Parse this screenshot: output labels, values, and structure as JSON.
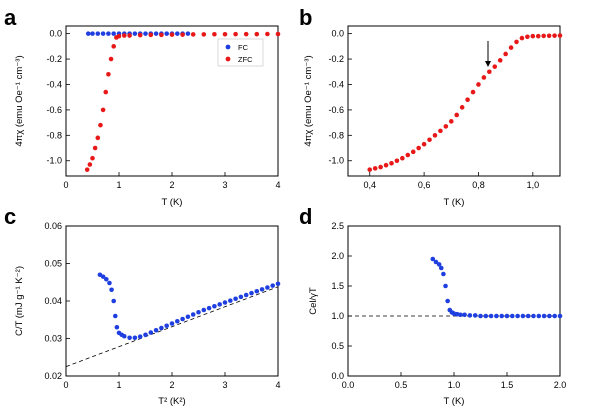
{
  "chart_data": [
    {
      "panel": "a",
      "type": "scatter",
      "xlabel": "T (K)",
      "ylabel": "4πχ (emu Oe⁻¹ cm⁻³)",
      "xlim": [
        0,
        4
      ],
      "ylim": [
        -1.12,
        0.06
      ],
      "xticks": [
        "0",
        "1",
        "2",
        "3",
        "4"
      ],
      "yticks": [
        "0.0",
        "-0.2",
        "-0.4",
        "-0.6",
        "-0.8",
        "-1.0"
      ],
      "legend_position": "top-right",
      "series": [
        {
          "name": "FC",
          "color": "#1f3fe0",
          "x": [
            0.42,
            0.5,
            0.6,
            0.7,
            0.8,
            0.9,
            1.0,
            1.1,
            1.2,
            1.3,
            1.4,
            1.5,
            1.6,
            1.7,
            1.8,
            1.9,
            2.0,
            2.1,
            2.2,
            2.3
          ],
          "y": [
            0,
            0,
            0,
            0,
            0,
            0,
            0,
            0,
            0,
            0,
            0,
            0,
            0,
            0,
            0,
            0,
            0,
            0,
            0,
            0
          ]
        },
        {
          "name": "ZFC",
          "color": "#e81818",
          "x": [
            0.4,
            0.45,
            0.5,
            0.55,
            0.6,
            0.65,
            0.7,
            0.75,
            0.8,
            0.85,
            0.9,
            0.95,
            1.0,
            1.1,
            1.2,
            1.4,
            1.6,
            1.8,
            2.0,
            2.2,
            2.4,
            2.6,
            2.8,
            3.0,
            3.2,
            3.4,
            3.6,
            3.8,
            4.0
          ],
          "y": [
            -1.07,
            -1.03,
            -0.98,
            -0.9,
            -0.82,
            -0.72,
            -0.6,
            -0.46,
            -0.32,
            -0.2,
            -0.1,
            -0.03,
            -0.02,
            -0.015,
            -0.015,
            -0.012,
            -0.01,
            -0.01,
            -0.008,
            -0.008,
            -0.006,
            -0.006,
            -0.005,
            -0.005,
            -0.004,
            -0.004,
            -0.004,
            -0.003,
            -0.003
          ]
        }
      ]
    },
    {
      "panel": "b",
      "type": "scatter",
      "xlabel": "T (K)",
      "ylabel": "4πχ (emu Oe⁻¹ cm⁻³)",
      "xlim": [
        0.32,
        1.1
      ],
      "ylim": [
        -1.12,
        0.06
      ],
      "xticks": [
        "0,4",
        "0,6",
        "0,8",
        "1,0"
      ],
      "yticks": [
        "0.0",
        "-0.2",
        "-0.4",
        "-0.6",
        "-0.8",
        "-1.0"
      ],
      "annotation": "arrow at T ≈ 0.83 K",
      "series": [
        {
          "name": "ZFC",
          "color": "#e81818",
          "x": [
            0.4,
            0.42,
            0.44,
            0.46,
            0.48,
            0.5,
            0.52,
            0.54,
            0.56,
            0.58,
            0.6,
            0.62,
            0.64,
            0.66,
            0.68,
            0.7,
            0.72,
            0.74,
            0.76,
            0.78,
            0.8,
            0.82,
            0.84,
            0.86,
            0.88,
            0.9,
            0.92,
            0.94,
            0.96,
            0.98,
            1.0,
            1.02,
            1.04,
            1.06,
            1.08,
            1.1
          ],
          "y": [
            -1.07,
            -1.06,
            -1.05,
            -1.035,
            -1.02,
            -1.0,
            -0.98,
            -0.955,
            -0.93,
            -0.9,
            -0.87,
            -0.835,
            -0.8,
            -0.765,
            -0.73,
            -0.69,
            -0.64,
            -0.58,
            -0.52,
            -0.46,
            -0.4,
            -0.345,
            -0.3,
            -0.26,
            -0.21,
            -0.16,
            -0.11,
            -0.065,
            -0.035,
            -0.025,
            -0.02,
            -0.02,
            -0.018,
            -0.017,
            -0.016,
            -0.015
          ]
        }
      ]
    },
    {
      "panel": "c",
      "type": "scatter",
      "xlabel": "T² (K²)",
      "ylabel": "C/T (mJ g⁻¹ K⁻²)",
      "xlim": [
        0,
        4
      ],
      "ylim": [
        0.02,
        0.06
      ],
      "xticks": [
        "0",
        "1",
        "2",
        "3",
        "4"
      ],
      "yticks": [
        "0.02",
        "0.03",
        "0.04",
        "0.05",
        "0.06"
      ],
      "fit_line": {
        "x": [
          0,
          4
        ],
        "y": [
          0.0225,
          0.0438
        ]
      },
      "series": [
        {
          "color": "#1f3fe0",
          "x": [
            0.64,
            0.7,
            0.76,
            0.82,
            0.86,
            0.9,
            0.93,
            0.96,
            1.0,
            1.05,
            1.1,
            1.2,
            1.3,
            1.4,
            1.5,
            1.6,
            1.7,
            1.8,
            1.9,
            2.0,
            2.1,
            2.2,
            2.3,
            2.4,
            2.5,
            2.6,
            2.7,
            2.8,
            2.9,
            3.0,
            3.1,
            3.2,
            3.3,
            3.4,
            3.5,
            3.6,
            3.7,
            3.8,
            3.9,
            4.0
          ],
          "y": [
            0.047,
            0.0465,
            0.0458,
            0.0448,
            0.043,
            0.04,
            0.036,
            0.033,
            0.0315,
            0.031,
            0.0306,
            0.0302,
            0.0302,
            0.0305,
            0.031,
            0.0316,
            0.0322,
            0.0328,
            0.0334,
            0.034,
            0.0346,
            0.0352,
            0.0358,
            0.0364,
            0.037,
            0.0376,
            0.0381,
            0.0386,
            0.0391,
            0.0396,
            0.0401,
            0.0406,
            0.0411,
            0.0416,
            0.0421,
            0.0426,
            0.0431,
            0.0436,
            0.0441,
            0.0446
          ]
        }
      ]
    },
    {
      "panel": "d",
      "type": "scatter",
      "xlabel": "T (K)",
      "ylabel": "Cel/γT",
      "xlim": [
        0,
        2
      ],
      "ylim": [
        0,
        2.5
      ],
      "xticks": [
        "0.0",
        "0.5",
        "1.0",
        "1.5",
        "2.0"
      ],
      "yticks": [
        "0.0",
        "0.5",
        "1.0",
        "1.5",
        "2.0",
        "2.5"
      ],
      "ref_line": {
        "y": 1.0
      },
      "series": [
        {
          "color": "#1f3fe0",
          "x": [
            0.8,
            0.83,
            0.86,
            0.88,
            0.9,
            0.92,
            0.94,
            0.96,
            0.98,
            1.0,
            1.03,
            1.06,
            1.1,
            1.15,
            1.2,
            1.25,
            1.3,
            1.35,
            1.4,
            1.45,
            1.5,
            1.55,
            1.6,
            1.65,
            1.7,
            1.75,
            1.8,
            1.85,
            1.9,
            1.95,
            2.0
          ],
          "y": [
            1.95,
            1.9,
            1.86,
            1.8,
            1.7,
            1.5,
            1.25,
            1.1,
            1.06,
            1.04,
            1.03,
            1.02,
            1.02,
            1.01,
            1.01,
            1.0,
            1.0,
            1.0,
            1.0,
            1.0,
            1.0,
            1.0,
            1.0,
            1.0,
            1.0,
            1.0,
            1.0,
            1.0,
            1.0,
            1.0,
            1.0
          ]
        }
      ]
    }
  ]
}
